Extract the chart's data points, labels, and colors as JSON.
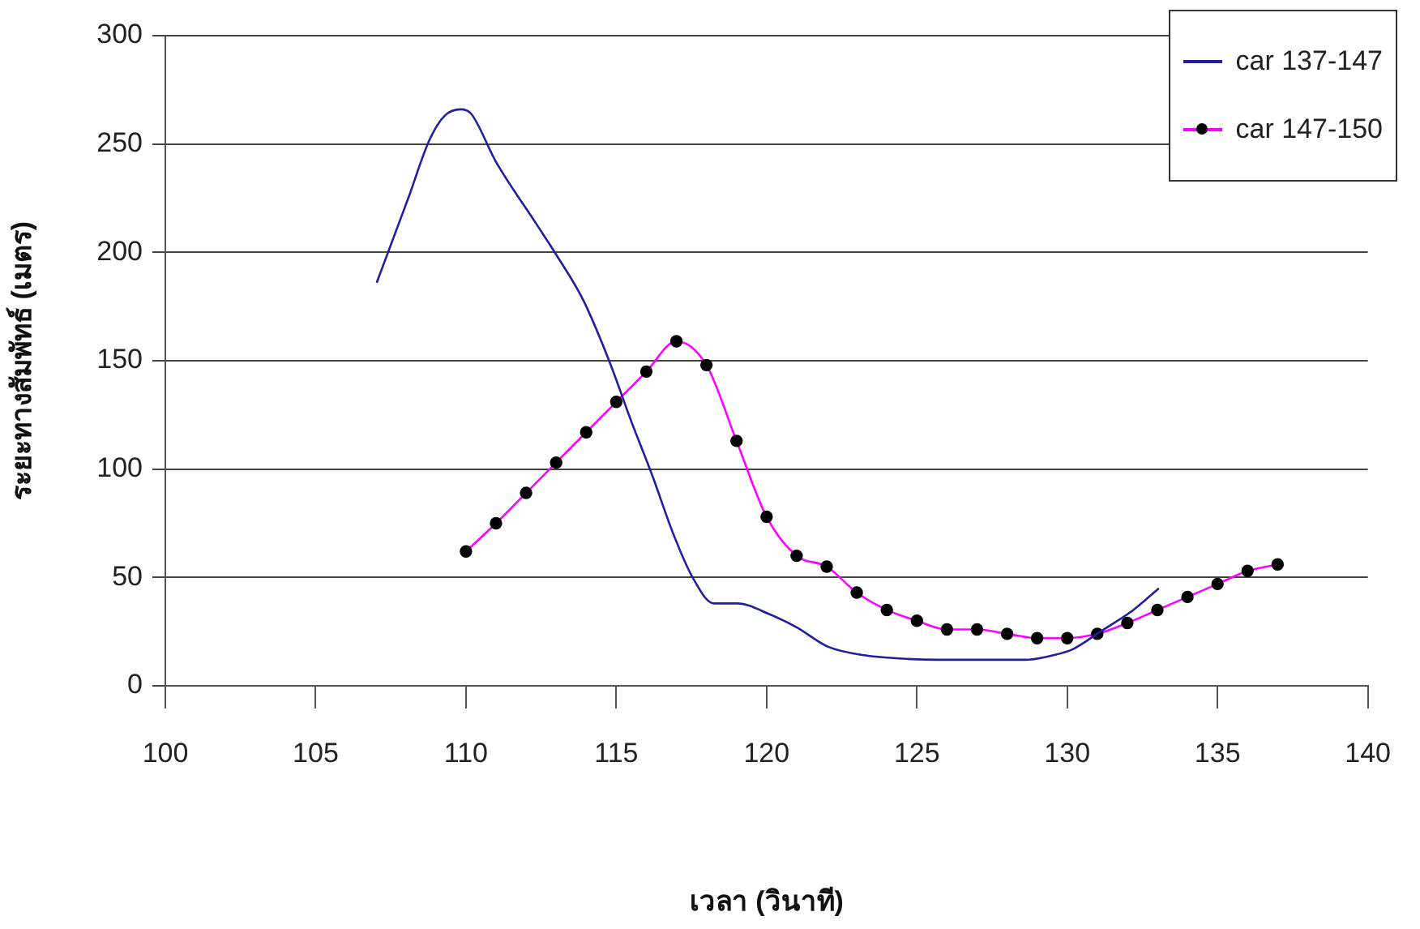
{
  "chart_data": {
    "type": "line",
    "xlabel": "เวลา (วินาที)",
    "ylabel": "ระยะทางสัมพัทธ์ (เมตร)",
    "xlim": [
      100,
      140
    ],
    "xticks": [
      100,
      105,
      110,
      115,
      120,
      125,
      130,
      135,
      140
    ],
    "ylim": [
      0,
      300
    ],
    "yticks": [
      0,
      50,
      100,
      150,
      200,
      250,
      300
    ],
    "grid": "y",
    "legend": "top right",
    "series": [
      {
        "name": "car 137-147",
        "color": "#1f1fa0",
        "marker": "none",
        "x": [
          107.03,
          108.08,
          108.79,
          109.29,
          109.82,
          110.17,
          110.99,
          112.3,
          113.0,
          113.9,
          114.79,
          115.5,
          116.2,
          116.9,
          117.54,
          118.24,
          119.04,
          120.1,
          121.0,
          122.05,
          123.3,
          124.7,
          126.5,
          128.6,
          129.5,
          130.2,
          131.1,
          132.2,
          133.05
        ],
        "values": [
          186,
          225,
          252,
          263,
          266,
          264,
          242,
          214,
          199,
          178,
          149,
          122,
          97,
          70,
          50,
          38,
          38,
          33,
          27,
          18,
          14,
          12.4,
          12,
          12,
          14,
          17,
          25,
          35,
          45
        ]
      },
      {
        "name": "car 147-150",
        "color": "#ff00ff",
        "marker": "circle",
        "x": [
          110,
          111,
          112,
          113,
          114,
          115,
          116,
          117,
          118,
          119,
          120,
          121,
          122,
          123,
          124,
          125,
          126,
          127,
          128,
          129,
          130,
          131,
          132,
          133,
          134,
          135,
          136,
          137
        ],
        "values": [
          62,
          75,
          89,
          103,
          117,
          131,
          145,
          159,
          148,
          113,
          78,
          60,
          55,
          43,
          35,
          30,
          26,
          26,
          24,
          22,
          22,
          24,
          29,
          35,
          41,
          47,
          53,
          56
        ]
      }
    ]
  }
}
